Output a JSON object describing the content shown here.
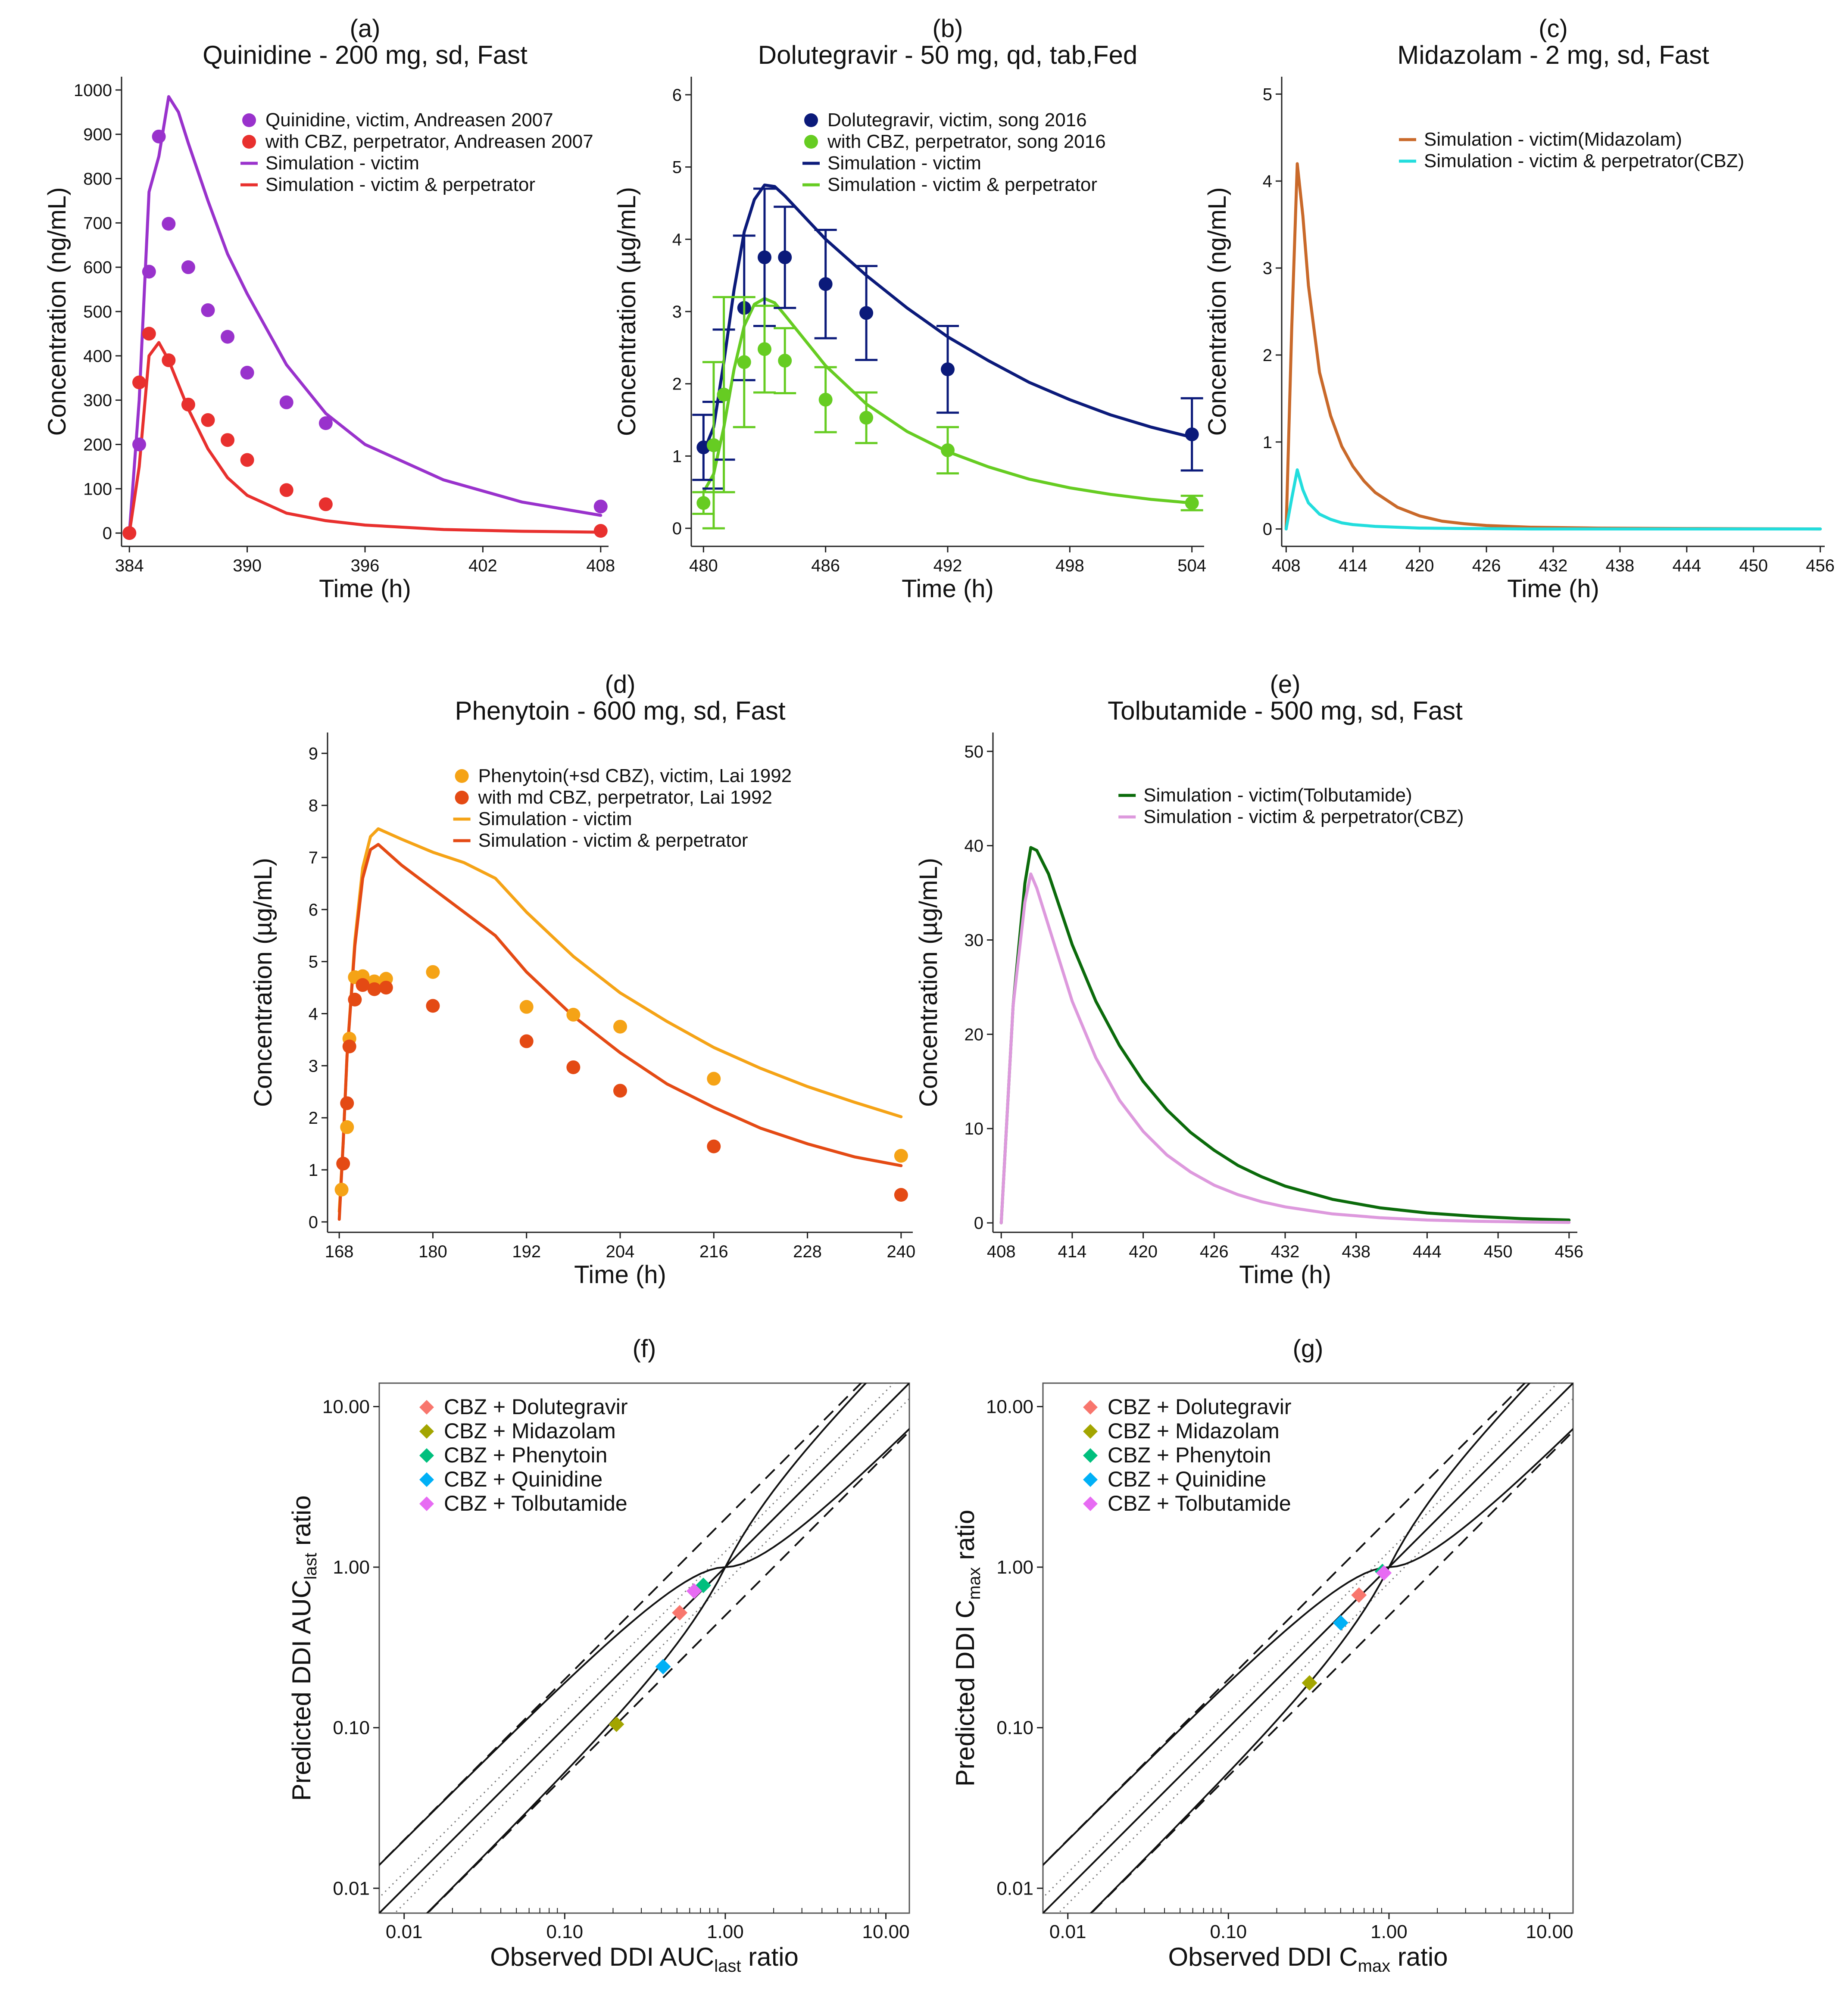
{
  "chart_data": [
    {
      "id": "a",
      "type": "line",
      "label": "(a)",
      "title": "Quinidine - 200 mg, sd, Fast",
      "xlabel": "Time (h)",
      "ylabel": "Concentration (ng/mL)",
      "xlim": [
        383.6,
        408.4
      ],
      "ylim": [
        -30,
        1030
      ],
      "xticks": [
        384,
        390,
        396,
        402,
        408
      ],
      "yticks": [
        0,
        100,
        200,
        300,
        400,
        500,
        600,
        700,
        800,
        900,
        1000
      ],
      "legend": [
        "Quinidine, victim, Andreasen 2007",
        "with CBZ, perpetrator, Andreasen 2007",
        "Simulation - victim",
        "Simulation - victim & perpetrator"
      ],
      "series": [
        {
          "name": "Quinidine, victim, Andreasen 2007",
          "kind": "points",
          "color": "#9932cc",
          "x": [
            384,
            384.5,
            385,
            385.5,
            386,
            387,
            388,
            389,
            390,
            392,
            394,
            408
          ],
          "y": [
            0,
            200,
            590,
            895,
            698,
            600,
            503,
            443,
            362,
            295,
            248,
            60
          ]
        },
        {
          "name": "with CBZ, perpetrator, Andreasen 2007",
          "kind": "points",
          "color": "#e8302e",
          "x": [
            384,
            384.5,
            385,
            386,
            387,
            388,
            389,
            390,
            392,
            394,
            408
          ],
          "y": [
            0,
            340,
            450,
            390,
            290,
            255,
            210,
            165,
            97,
            65,
            5
          ]
        },
        {
          "name": "Simulation - victim",
          "kind": "line",
          "color": "#9932cc",
          "x": [
            384,
            384.5,
            385,
            385.5,
            386,
            386.5,
            387,
            388,
            389,
            390,
            392,
            394,
            396,
            400,
            404,
            408
          ],
          "y": [
            0,
            300,
            770,
            850,
            985,
            950,
            880,
            750,
            630,
            540,
            380,
            270,
            200,
            120,
            70,
            40
          ]
        },
        {
          "name": "Simulation - victim & perpetrator",
          "kind": "line",
          "color": "#e8302e",
          "x": [
            384,
            384.5,
            385,
            385.5,
            386,
            387,
            388,
            389,
            390,
            392,
            394,
            396,
            400,
            404,
            408
          ],
          "y": [
            0,
            150,
            400,
            430,
            390,
            280,
            190,
            125,
            85,
            45,
            28,
            18,
            8,
            4,
            2
          ]
        }
      ]
    },
    {
      "id": "b",
      "type": "line",
      "label": "(b)",
      "title": "Dolutegravir - 50 mg, qd, tab,Fed",
      "xlabel": "Time (h)",
      "ylabel": "Concentration (µg/mL)",
      "xlim": [
        479.4,
        504.6
      ],
      "ylim": [
        -0.25,
        6.25
      ],
      "xticks": [
        480,
        486,
        492,
        498,
        504
      ],
      "yticks": [
        0,
        1,
        2,
        3,
        4,
        5,
        6
      ],
      "legend": [
        "Dolutegravir, victim, song 2016",
        "with CBZ, perpetrator, song 2016",
        "Simulation - victim",
        "Simulation - victim & perpetrator"
      ],
      "series": [
        {
          "name": "Dolutegravir, victim, song 2016",
          "kind": "points",
          "color": "#0b1a7a",
          "x": [
            480,
            480.5,
            481,
            482,
            483,
            484,
            486,
            488,
            492,
            504
          ],
          "y": [
            1.12,
            1.15,
            1.85,
            3.05,
            3.75,
            3.75,
            3.38,
            2.98,
            2.2,
            1.3
          ],
          "err": [
            0.45,
            0.6,
            0.9,
            1.0,
            0.95,
            0.7,
            0.75,
            0.65,
            0.6,
            0.5
          ]
        },
        {
          "name": "with CBZ, perpetrator, song 2016",
          "kind": "points",
          "color": "#66cc22",
          "x": [
            480,
            480.5,
            481,
            482,
            483,
            484,
            486,
            488,
            492,
            504
          ],
          "y": [
            0.35,
            1.15,
            1.85,
            2.3,
            2.48,
            2.32,
            1.78,
            1.53,
            1.08,
            0.35
          ],
          "err": [
            0.15,
            1.15,
            1.35,
            0.9,
            0.6,
            0.45,
            0.45,
            0.35,
            0.32,
            0.1
          ]
        },
        {
          "name": "Simulation - victim",
          "kind": "line",
          "color": "#0b1a7a",
          "x": [
            480,
            480.5,
            481,
            481.5,
            482,
            482.5,
            483,
            483.5,
            484,
            485,
            486,
            488,
            490,
            492,
            494,
            496,
            498,
            500,
            502,
            504
          ],
          "y": [
            1.05,
            1.4,
            2.3,
            3.3,
            4.1,
            4.55,
            4.75,
            4.73,
            4.6,
            4.3,
            4.0,
            3.5,
            3.05,
            2.65,
            2.32,
            2.02,
            1.78,
            1.57,
            1.4,
            1.26
          ]
        },
        {
          "name": "Simulation - victim & perpetrator",
          "kind": "line",
          "color": "#66cc22",
          "x": [
            480,
            480.5,
            481,
            481.5,
            482,
            482.5,
            483,
            483.5,
            484,
            485,
            486,
            488,
            490,
            492,
            494,
            496,
            498,
            500,
            502,
            504
          ],
          "y": [
            0.5,
            0.75,
            1.4,
            2.2,
            2.8,
            3.1,
            3.18,
            3.12,
            2.95,
            2.6,
            2.25,
            1.72,
            1.34,
            1.06,
            0.85,
            0.68,
            0.56,
            0.47,
            0.4,
            0.35
          ]
        }
      ]
    },
    {
      "id": "c",
      "type": "line",
      "label": "(c)",
      "title": "Midazolam - 2 mg, sd, Fast",
      "xlabel": "Time (h)",
      "ylabel": "Concentration (ng/mL)",
      "xlim": [
        407.6,
        456.4
      ],
      "ylim": [
        -0.2,
        5.2
      ],
      "xticks": [
        408,
        414,
        420,
        426,
        432,
        438,
        444,
        450,
        456
      ],
      "yticks": [
        0,
        1,
        2,
        3,
        4,
        5
      ],
      "legend": [
        "Simulation - victim(Midazolam)",
        "Simulation - victim & perpetrator(CBZ)"
      ],
      "series": [
        {
          "name": "Simulation - victim(Midazolam)",
          "kind": "line",
          "color": "#c9692a",
          "x": [
            408,
            408.5,
            409,
            409.5,
            410,
            411,
            412,
            413,
            414,
            415,
            416,
            418,
            420,
            422,
            424,
            426,
            430,
            436,
            444,
            456
          ],
          "y": [
            0,
            2.3,
            4.2,
            3.6,
            2.8,
            1.8,
            1.3,
            0.95,
            0.72,
            0.55,
            0.42,
            0.25,
            0.15,
            0.09,
            0.06,
            0.04,
            0.02,
            0.01,
            0.005,
            0
          ]
        },
        {
          "name": "Simulation - victim & perpetrator(CBZ)",
          "kind": "line",
          "color": "#22dddd",
          "x": [
            408,
            408.5,
            409,
            409.5,
            410,
            411,
            412,
            413,
            414,
            416,
            418,
            420,
            424,
            430,
            440,
            456
          ],
          "y": [
            0,
            0.35,
            0.68,
            0.45,
            0.3,
            0.17,
            0.11,
            0.07,
            0.05,
            0.03,
            0.02,
            0.01,
            0.005,
            0,
            0,
            0
          ]
        }
      ]
    },
    {
      "id": "d",
      "type": "line",
      "label": "(d)",
      "title": "Phenytoin - 600 mg, sd, Fast",
      "xlabel": "Time (h)",
      "ylabel": "Concentration (µg/mL)",
      "xlim": [
        166.5,
        241.5
      ],
      "ylim": [
        -0.2,
        9.4
      ],
      "xticks": [
        168,
        180,
        192,
        204,
        216,
        228,
        240
      ],
      "yticks": [
        0,
        1,
        2,
        3,
        4,
        5,
        6,
        7,
        8,
        9
      ],
      "legend": [
        "Phenytoin(+sd CBZ), victim, Lai 1992",
        "with md CBZ, perpetrator, Lai 1992",
        "Simulation - victim",
        "Simulation - victim & perpetrator"
      ],
      "series": [
        {
          "name": "Phenytoin(+sd CBZ), victim, Lai 1992",
          "kind": "points",
          "color": "#f5a316",
          "x": [
            168.3,
            169,
            169.3,
            170,
            171,
            172.5,
            174,
            180,
            192,
            198,
            204,
            216,
            240
          ],
          "y": [
            0.62,
            1.82,
            3.52,
            4.7,
            4.72,
            4.62,
            4.67,
            4.8,
            4.13,
            3.98,
            3.75,
            2.75,
            1.27
          ]
        },
        {
          "name": "with md CBZ, perpetrator, Lai 1992",
          "kind": "points",
          "color": "#e44a14",
          "x": [
            168.5,
            169,
            169.3,
            170,
            171,
            172.5,
            174,
            180,
            192,
            198,
            204,
            216,
            240
          ],
          "y": [
            1.12,
            2.28,
            3.37,
            4.27,
            4.55,
            4.47,
            4.5,
            4.15,
            3.47,
            2.97,
            2.52,
            1.45,
            0.52
          ]
        },
        {
          "name": "Simulation - victim",
          "kind": "line",
          "color": "#f5a316",
          "x": [
            168,
            168.5,
            169,
            170,
            171,
            172,
            173,
            176,
            180,
            184,
            188,
            192,
            198,
            204,
            210,
            216,
            222,
            228,
            234,
            240
          ],
          "y": [
            0.2,
            1.5,
            3.2,
            5.4,
            6.8,
            7.4,
            7.55,
            7.35,
            7.1,
            6.9,
            6.6,
            5.95,
            5.1,
            4.4,
            3.85,
            3.35,
            2.95,
            2.6,
            2.3,
            2.02
          ]
        },
        {
          "name": "Simulation - victim & perpetrator",
          "kind": "line",
          "color": "#e44a14",
          "x": [
            168,
            168.5,
            169,
            170,
            171,
            172,
            173,
            176,
            180,
            184,
            188,
            192,
            198,
            204,
            210,
            216,
            222,
            228,
            234,
            240
          ],
          "y": [
            0.05,
            1.5,
            3.2,
            5.3,
            6.6,
            7.15,
            7.25,
            6.85,
            6.4,
            5.95,
            5.5,
            4.8,
            3.95,
            3.25,
            2.65,
            2.2,
            1.8,
            1.5,
            1.25,
            1.08
          ]
        }
      ]
    },
    {
      "id": "e",
      "type": "line",
      "label": "(e)",
      "title": "Tolbutamide - 500 mg, sd, Fast",
      "xlabel": "Time (h)",
      "ylabel": "Concentration (µg/mL)",
      "xlim": [
        407.3,
        456.7
      ],
      "ylim": [
        -1,
        52
      ],
      "xticks": [
        408,
        414,
        420,
        426,
        432,
        438,
        444,
        450,
        456
      ],
      "yticks": [
        0,
        10,
        20,
        30,
        40,
        50
      ],
      "legend": [
        "Simulation - victim(Tolbutamide)",
        "Simulation - victim & perpetrator(CBZ)"
      ],
      "series": [
        {
          "name": "Simulation - victim(Tolbutamide)",
          "kind": "line",
          "color": "#0b6b0b",
          "x": [
            408,
            409,
            410,
            410.5,
            411,
            412,
            414,
            416,
            418,
            420,
            422,
            424,
            426,
            428,
            430,
            432,
            436,
            440,
            444,
            448,
            452,
            456
          ],
          "y": [
            0,
            23,
            36,
            39.8,
            39.5,
            37,
            29.5,
            23.5,
            18.8,
            15,
            12,
            9.6,
            7.7,
            6.1,
            4.9,
            3.9,
            2.5,
            1.6,
            1.05,
            0.7,
            0.45,
            0.3
          ]
        },
        {
          "name": "Simulation - victim & perpetrator(CBZ)",
          "kind": "line",
          "color": "#dd99dd",
          "x": [
            408,
            409,
            410,
            410.5,
            411,
            412,
            414,
            416,
            418,
            420,
            422,
            424,
            426,
            428,
            430,
            432,
            436,
            440,
            444,
            448,
            452,
            456
          ],
          "y": [
            0,
            23,
            34,
            37,
            35.5,
            31.5,
            23.5,
            17.5,
            13,
            9.7,
            7.2,
            5.4,
            4,
            3,
            2.25,
            1.7,
            0.95,
            0.55,
            0.3,
            0.18,
            0.1,
            0.05
          ]
        }
      ]
    },
    {
      "id": "f",
      "type": "scatter",
      "label": "(f)",
      "scale": "log",
      "xlabel_main": "Observed DDI AUC",
      "xlabel_sub": "last",
      "xlabel_tail": " ratio",
      "ylabel_main": "Predicted DDI AUC",
      "ylabel_sub": "last",
      "ylabel_tail": " ratio",
      "xlim": [
        0.007,
        14
      ],
      "ylim": [
        0.007,
        14
      ],
      "ticks": [
        0.01,
        0.1,
        1,
        10
      ],
      "tick_labels": [
        "0.01",
        "0.10",
        "1.00",
        "10.00"
      ],
      "legend": [
        "CBZ + Dolutegravir",
        "CBZ + Midazolam",
        "CBZ + Phenytoin",
        "CBZ + Quinidine",
        "CBZ + Tolbutamide"
      ],
      "points": [
        {
          "name": "CBZ + Dolutegravir",
          "color": "#f8766d",
          "x": 0.52,
          "y": 0.52
        },
        {
          "name": "CBZ + Midazolam",
          "color": "#a3a500",
          "x": 0.21,
          "y": 0.105
        },
        {
          "name": "CBZ + Phenytoin",
          "color": "#00bf7d",
          "x": 0.73,
          "y": 0.77
        },
        {
          "name": "CBZ + Quinidine",
          "color": "#00b0f6",
          "x": 0.41,
          "y": 0.24
        },
        {
          "name": "CBZ + Tolbutamide",
          "color": "#e76bf3",
          "x": 0.64,
          "y": 0.71
        }
      ]
    },
    {
      "id": "g",
      "type": "scatter",
      "label": "(g)",
      "scale": "log",
      "xlabel_main": "Observed DDI C",
      "xlabel_sub": "max",
      "xlabel_tail": " ratio",
      "ylabel_main": "Predicted DDI C",
      "ylabel_sub": "max",
      "ylabel_tail": " ratio",
      "xlim": [
        0.007,
        14
      ],
      "ylim": [
        0.007,
        14
      ],
      "ticks": [
        0.01,
        0.1,
        1,
        10
      ],
      "tick_labels": [
        "0.01",
        "0.10",
        "1.00",
        "10.00"
      ],
      "legend": [
        "CBZ + Dolutegravir",
        "CBZ + Midazolam",
        "CBZ + Phenytoin",
        "CBZ + Quinidine",
        "CBZ + Tolbutamide"
      ],
      "points": [
        {
          "name": "CBZ + Dolutegravir",
          "color": "#f8766d",
          "x": 0.65,
          "y": 0.67
        },
        {
          "name": "CBZ + Midazolam",
          "color": "#a3a500",
          "x": 0.32,
          "y": 0.19
        },
        {
          "name": "CBZ + Phenytoin",
          "color": "#00bf7d",
          "x": 0.91,
          "y": 0.94
        },
        {
          "name": "CBZ + Quinidine",
          "color": "#00b0f6",
          "x": 0.5,
          "y": 0.45
        },
        {
          "name": "CBZ + Tolbutamide",
          "color": "#e76bf3",
          "x": 0.93,
          "y": 0.92
        }
      ]
    }
  ]
}
